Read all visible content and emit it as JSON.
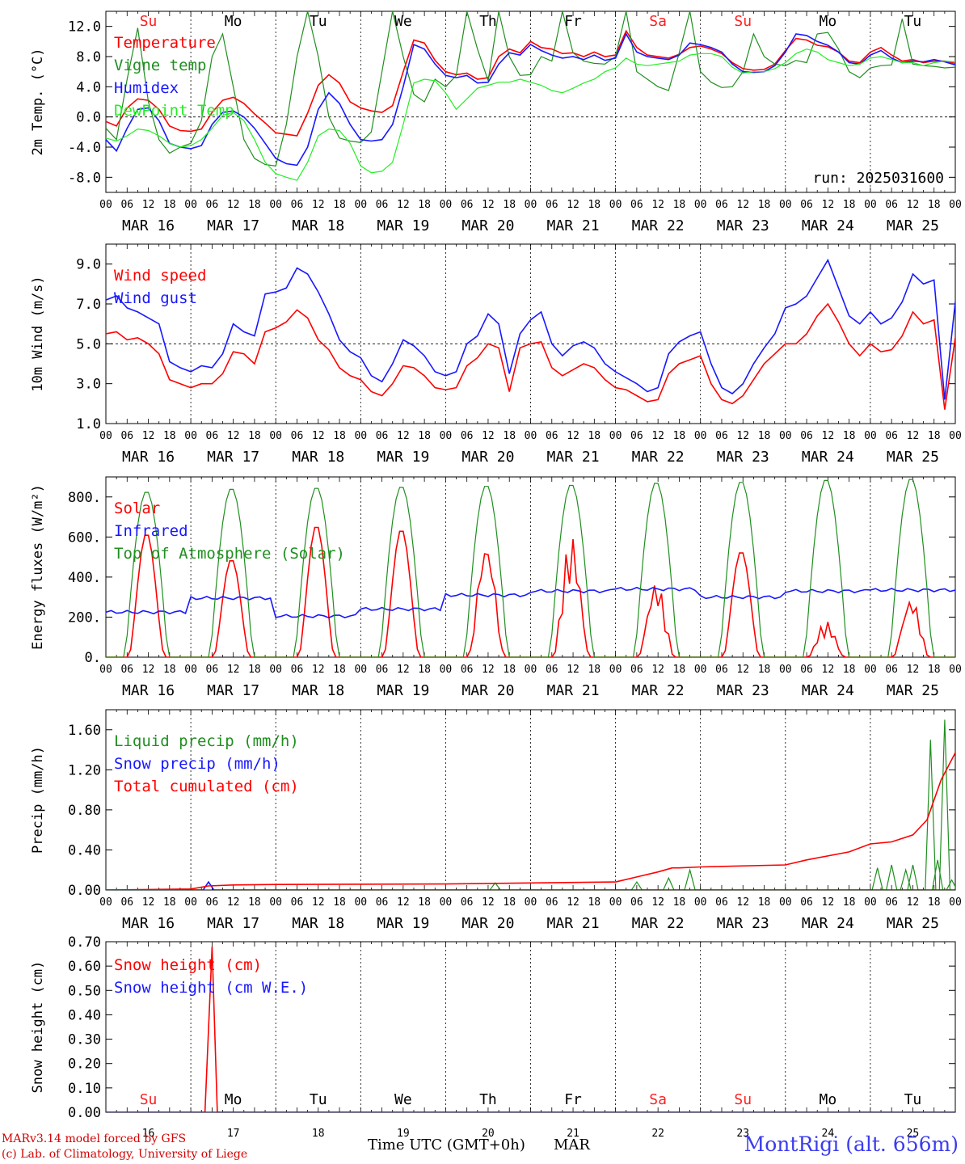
{
  "run_label": "run: 2025031600",
  "station": "MontRigi (alt. 656m)",
  "credits": [
    "MARv3.14 model forced by GFS",
    "(c) Lab. of Climatology, University of Liege"
  ],
  "x_axis": {
    "title": "Time UTC (GMT+0h)",
    "month": "MAR",
    "hour_ticks": [
      "00",
      "06",
      "12",
      "18"
    ],
    "date_labels": [
      "MAR 16",
      "MAR 17",
      "MAR 18",
      "MAR 19",
      "MAR 20",
      "MAR 21",
      "MAR 22",
      "MAR 23",
      "MAR 24",
      "MAR 25"
    ],
    "day_numbers": [
      "16",
      "17",
      "18",
      "19",
      "20",
      "21",
      "22",
      "23",
      "24",
      "25"
    ],
    "weekdays": [
      "Su",
      "Mo",
      "Tu",
      "We",
      "Th",
      "Fr",
      "Sa",
      "Su",
      "Mo",
      "Tu"
    ],
    "weekend_color": "#ff2020",
    "weekday_color": "#000000"
  },
  "colors": {
    "red": "#ff0000",
    "green": "#1f8f1f",
    "blue": "#1818ff",
    "lightgreen": "#22ee22"
  },
  "chart_data": [
    {
      "type": "line",
      "ylabel": "2m Temp. (°C)",
      "ylim": [
        -10,
        14
      ],
      "yticks": [
        -8,
        -4,
        0,
        4,
        8,
        12
      ],
      "ytick_labels": [
        "-8.0",
        "-4.0",
        "0.0",
        "4.0",
        "8.0",
        "12.0"
      ],
      "x_unit": "hours since MAR 16 00 UTC",
      "x": [
        0,
        3,
        6,
        9,
        12,
        15,
        18,
        21,
        24,
        27,
        30,
        33,
        36,
        39,
        42,
        45,
        48,
        51,
        54,
        57,
        60,
        63,
        66,
        69,
        72,
        75,
        78,
        81,
        84,
        87,
        90,
        93,
        96,
        99,
        102,
        105,
        108,
        111,
        114,
        117,
        120,
        123,
        126,
        129,
        132,
        135,
        138,
        141,
        144,
        147,
        150,
        153,
        156,
        159,
        162,
        165,
        168,
        171,
        174,
        177,
        180,
        183,
        186,
        189,
        192,
        195,
        198,
        201,
        204,
        207,
        210,
        213,
        216,
        219,
        222,
        225,
        228,
        231,
        234,
        237,
        240
      ],
      "zero_line": 0,
      "series": [
        {
          "name": "Temperature",
          "color": "red",
          "values": [
            -0.6,
            -1.2,
            1.2,
            2.4,
            2.2,
            1.0,
            -1.2,
            -1.8,
            -1.9,
            -1.6,
            0.6,
            2.2,
            2.6,
            1.8,
            0.4,
            -0.8,
            -2.1,
            -2.3,
            -2.5,
            0.5,
            4.2,
            5.6,
            4.5,
            2.0,
            1.2,
            0.8,
            0.6,
            1.5,
            6.0,
            10.2,
            9.8,
            7.5,
            6.0,
            5.6,
            5.8,
            5.0,
            5.2,
            8.0,
            9.0,
            8.5,
            10.0,
            9.2,
            9.0,
            8.4,
            8.5,
            8.0,
            8.6,
            8.0,
            8.2,
            11.4,
            9.2,
            8.2,
            8.0,
            7.8,
            8.3,
            9.2,
            9.4,
            9.0,
            8.4,
            7.2,
            6.4,
            6.2,
            6.3,
            7.0,
            8.8,
            10.4,
            10.2,
            9.5,
            9.3,
            8.6,
            7.4,
            7.2,
            8.6,
            9.2,
            8.2,
            7.4,
            7.6,
            7.2,
            7.4,
            7.4,
            7.1
          ]
        },
        {
          "name": "Vigne temp",
          "color": "green",
          "values": [
            -1.5,
            -3.0,
            5.0,
            11.8,
            2.0,
            -3.0,
            -4.8,
            -4.0,
            -3.5,
            -0.5,
            8.0,
            11.0,
            4.0,
            -3.0,
            -5.5,
            -6.3,
            -6.5,
            -1.0,
            8.0,
            14.0,
            8.0,
            0.0,
            -2.8,
            -3.2,
            -3.4,
            -2.0,
            6.0,
            14.0,
            8.0,
            3.0,
            2.0,
            5.0,
            4.0,
            5.5,
            14.0,
            9.0,
            4.8,
            14.0,
            8.0,
            5.5,
            5.6,
            8.0,
            7.4,
            14.0,
            8.5,
            7.4,
            7.1,
            7.0,
            8.0,
            14.0,
            6.0,
            5.0,
            4.0,
            3.5,
            8.5,
            14.0,
            6.0,
            4.6,
            3.9,
            4.0,
            6.0,
            11.0,
            8.0,
            7.0,
            6.8,
            7.5,
            7.2,
            11.0,
            11.2,
            9.0,
            6.0,
            5.2,
            6.5,
            6.8,
            6.9,
            13.0,
            7.0,
            6.8,
            6.7,
            6.5,
            6.6
          ]
        },
        {
          "name": "Humidex",
          "color": "blue",
          "values": [
            -3.0,
            -4.5,
            -1.5,
            1.0,
            1.2,
            -0.5,
            -3.5,
            -4.0,
            -4.2,
            -3.8,
            -1.0,
            0.6,
            0.8,
            0.0,
            -1.5,
            -3.5,
            -5.5,
            -6.2,
            -6.4,
            -4.0,
            1.0,
            3.2,
            1.8,
            -1.0,
            -3.0,
            -3.2,
            -3.0,
            -1.0,
            4.0,
            9.6,
            9.0,
            7.0,
            5.5,
            5.2,
            5.5,
            4.5,
            4.6,
            7.0,
            8.5,
            8.2,
            9.6,
            8.8,
            8.2,
            7.8,
            8.0,
            7.6,
            8.2,
            7.5,
            7.8,
            11.0,
            8.6,
            8.0,
            7.8,
            7.6,
            8.2,
            9.8,
            9.6,
            9.2,
            8.6,
            7.0,
            6.0,
            5.9,
            6.0,
            6.8,
            8.6,
            11.0,
            10.8,
            10.0,
            9.5,
            8.6,
            7.2,
            7.0,
            8.2,
            8.8,
            7.8,
            7.2,
            7.4,
            7.3,
            7.6,
            7.3,
            6.9
          ]
        },
        {
          "name": "DewPoint Temp",
          "color": "lightgreen",
          "values": [
            -2.8,
            -3.2,
            -2.5,
            -1.6,
            -1.8,
            -2.5,
            -3.5,
            -4.0,
            -3.8,
            -3.0,
            -1.5,
            0.2,
            0.6,
            -0.5,
            -3.0,
            -6.0,
            -7.5,
            -8.0,
            -8.4,
            -6.0,
            -2.5,
            -1.6,
            -1.8,
            -3.5,
            -6.5,
            -7.4,
            -7.2,
            -6.0,
            -1.0,
            4.5,
            5.0,
            4.8,
            3.2,
            1.0,
            2.4,
            3.8,
            4.2,
            4.6,
            4.6,
            5.0,
            4.6,
            4.2,
            3.5,
            3.2,
            3.8,
            4.5,
            5.0,
            6.0,
            6.5,
            7.8,
            7.0,
            6.8,
            7.0,
            7.2,
            7.4,
            8.2,
            8.4,
            8.4,
            8.0,
            6.6,
            5.8,
            6.0,
            6.0,
            6.4,
            7.2,
            8.4,
            9.0,
            8.6,
            7.6,
            7.2,
            6.8,
            7.0,
            7.8,
            8.0,
            7.6,
            7.2,
            7.2,
            6.8,
            7.2,
            7.4,
            7.3
          ]
        }
      ]
    },
    {
      "type": "line",
      "ylabel": "10m Wind (m/s)",
      "ylim": [
        1,
        10
      ],
      "yticks": [
        1,
        3,
        5,
        7,
        9
      ],
      "ytick_labels": [
        "1.0",
        "3.0",
        "5.0",
        "7.0",
        "9.0"
      ],
      "x": [
        0,
        3,
        6,
        9,
        12,
        15,
        18,
        21,
        24,
        27,
        30,
        33,
        36,
        39,
        42,
        45,
        48,
        51,
        54,
        57,
        60,
        63,
        66,
        69,
        72,
        75,
        78,
        81,
        84,
        87,
        90,
        93,
        96,
        99,
        102,
        105,
        108,
        111,
        114,
        117,
        120,
        123,
        126,
        129,
        132,
        135,
        138,
        141,
        144,
        147,
        150,
        153,
        156,
        159,
        162,
        165,
        168,
        171,
        174,
        177,
        180,
        183,
        186,
        189,
        192,
        195,
        198,
        201,
        204,
        207,
        210,
        213,
        216,
        219,
        222,
        225,
        228,
        231,
        234,
        237,
        240
      ],
      "zero_line": 5,
      "series": [
        {
          "name": "Wind speed",
          "color": "red",
          "values": [
            5.5,
            5.6,
            5.2,
            5.3,
            5.0,
            4.5,
            3.2,
            3.0,
            2.8,
            3.0,
            3.0,
            3.5,
            4.6,
            4.5,
            4.0,
            5.6,
            5.8,
            6.1,
            6.7,
            6.3,
            5.2,
            4.7,
            3.8,
            3.4,
            3.2,
            2.6,
            2.4,
            3.0,
            3.9,
            3.8,
            3.4,
            2.8,
            2.7,
            2.8,
            3.9,
            4.3,
            5.0,
            4.8,
            2.6,
            4.8,
            5.0,
            5.1,
            3.8,
            3.4,
            3.7,
            4.0,
            3.8,
            3.2,
            2.8,
            2.7,
            2.4,
            2.1,
            2.2,
            3.5,
            4.0,
            4.2,
            4.4,
            3.0,
            2.2,
            2.0,
            2.4,
            3.2,
            4.0,
            4.5,
            5.0,
            5.0,
            5.5,
            6.4,
            7.0,
            6.1,
            5.0,
            4.4,
            5.0,
            4.6,
            4.7,
            5.4,
            6.6,
            6.0,
            6.2,
            1.7,
            5.3
          ]
        },
        {
          "name": "Wind gust",
          "color": "blue",
          "values": [
            7.2,
            7.4,
            6.8,
            6.6,
            6.3,
            6.0,
            4.1,
            3.8,
            3.6,
            3.9,
            3.8,
            4.5,
            6.0,
            5.6,
            5.4,
            7.5,
            7.6,
            7.8,
            8.8,
            8.5,
            7.6,
            6.5,
            5.2,
            4.6,
            4.3,
            3.4,
            3.1,
            4.0,
            5.2,
            4.9,
            4.4,
            3.6,
            3.4,
            3.6,
            5.0,
            5.4,
            6.5,
            6.0,
            3.5,
            5.5,
            6.2,
            6.6,
            5.0,
            4.4,
            4.9,
            5.1,
            4.8,
            4.0,
            3.6,
            3.3,
            3.0,
            2.6,
            2.8,
            4.5,
            5.1,
            5.4,
            5.6,
            4.0,
            2.8,
            2.5,
            3.0,
            4.0,
            4.8,
            5.5,
            6.8,
            7.0,
            7.4,
            8.3,
            9.2,
            7.8,
            6.4,
            6.0,
            6.6,
            6.0,
            6.3,
            7.1,
            8.5,
            8.0,
            8.2,
            2.2,
            7.1
          ]
        }
      ]
    },
    {
      "type": "line",
      "ylabel": "Energy fluxes (W/m²)",
      "ylim": [
        0,
        900
      ],
      "yticks": [
        0,
        200,
        400,
        600,
        800
      ],
      "ytick_labels": [
        "0.",
        "200.",
        "400.",
        "600.",
        "800."
      ],
      "series": [
        {
          "name": "Solar",
          "color": "red",
          "day_peaks": [
            620,
            490,
            660,
            640,
            590,
            610,
            380,
            530,
            180,
            300
          ]
        },
        {
          "name": "Infrared",
          "color": "blue",
          "day_means": [
            225,
            295,
            205,
            240,
            310,
            330,
            340,
            300,
            330,
            335
          ]
        },
        {
          "name": "Top of Atmosphere (Solar)",
          "color": "green",
          "day_peaks": [
            830,
            845,
            850,
            855,
            860,
            865,
            875,
            880,
            890,
            895
          ]
        }
      ]
    },
    {
      "type": "line",
      "ylabel": "Precip (mm/h)",
      "ylim": [
        0,
        1.8
      ],
      "yticks": [
        0,
        0.4,
        0.8,
        1.2,
        1.6
      ],
      "ytick_labels": [
        "0.00",
        "0.40",
        "0.80",
        "1.20",
        "1.60"
      ],
      "series": [
        {
          "name": "Liquid precip (mm/h)",
          "color": "green",
          "events": [
            [
              29,
              0.08
            ],
            [
              110,
              0.07
            ],
            [
              150,
              0.08
            ],
            [
              159,
              0.12
            ],
            [
              165,
              0.2
            ],
            [
              218,
              0.22
            ],
            [
              222,
              0.25
            ],
            [
              226,
              0.2
            ],
            [
              228,
              0.25
            ],
            [
              233,
              1.5
            ],
            [
              235,
              0.3
            ],
            [
              237,
              1.7
            ],
            [
              239,
              0.1
            ]
          ]
        },
        {
          "name": "Snow precip (mm/h)",
          "color": "blue",
          "events": [
            [
              29,
              0.08
            ]
          ]
        },
        {
          "name": "Total cumulated (cm)",
          "color": "red",
          "x": [
            0,
            24,
            29,
            36,
            48,
            96,
            120,
            144,
            150,
            156,
            160,
            162,
            168,
            192,
            198,
            210,
            216,
            222,
            228,
            232,
            236,
            240
          ],
          "values": [
            0,
            0.01,
            0.04,
            0.05,
            0.055,
            0.06,
            0.07,
            0.08,
            0.13,
            0.18,
            0.22,
            0.22,
            0.23,
            0.25,
            0.3,
            0.38,
            0.46,
            0.48,
            0.55,
            0.7,
            1.1,
            1.37
          ]
        }
      ]
    },
    {
      "type": "line",
      "ylabel": "Snow height (cm)",
      "ylim": [
        0,
        0.7
      ],
      "yticks": [
        0,
        0.1,
        0.2,
        0.3,
        0.4,
        0.5,
        0.6,
        0.7
      ],
      "ytick_labels": [
        "0.00",
        "0.10",
        "0.20",
        "0.30",
        "0.40",
        "0.50",
        "0.60",
        "0.70"
      ],
      "series": [
        {
          "name": "Snow height (cm)",
          "color": "red",
          "x": [
            0,
            28,
            30,
            31.5,
            33,
            240
          ],
          "values": [
            0,
            0,
            0.68,
            0,
            0,
            0
          ]
        },
        {
          "name": "Snow height (cm W.E.)",
          "color": "blue",
          "x": [
            0,
            240
          ],
          "values": [
            0,
            0
          ]
        }
      ]
    }
  ]
}
